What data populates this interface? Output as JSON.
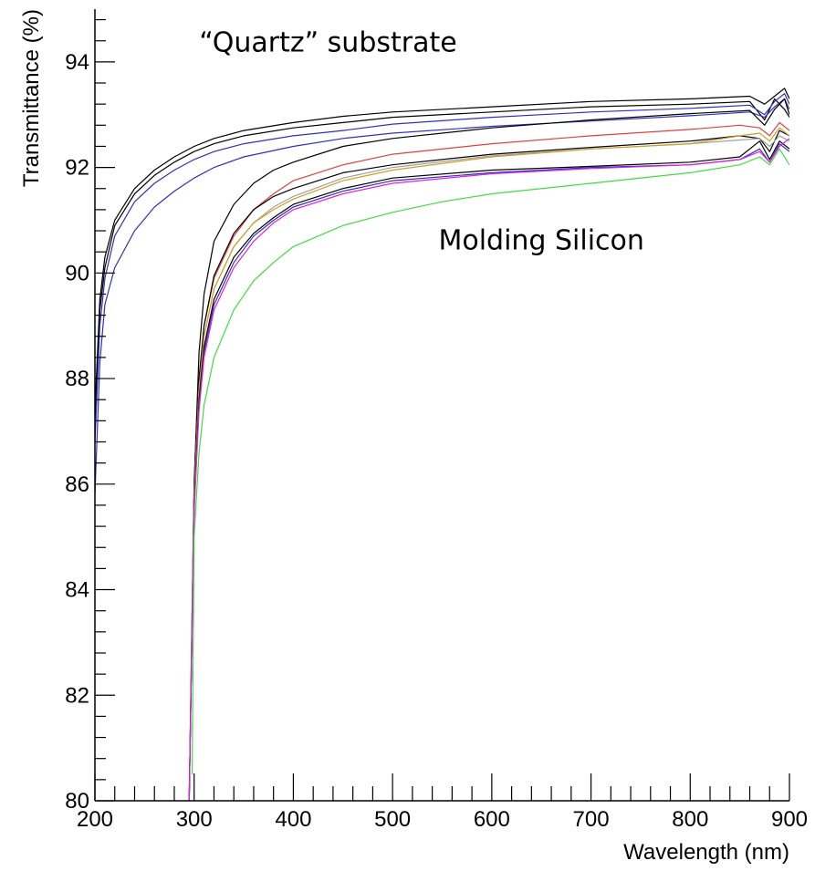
{
  "chart_data": {
    "type": "line",
    "title": "",
    "xlabel": "Wavelength (nm)",
    "ylabel": "Transmittance (%)",
    "xlim": [
      200,
      900
    ],
    "ylim": [
      80,
      95
    ],
    "x_ticks": [
      200,
      300,
      400,
      500,
      600,
      700,
      800,
      900
    ],
    "y_ticks": [
      80,
      82,
      84,
      86,
      88,
      90,
      92,
      94
    ],
    "grid": false,
    "legend": "none",
    "annotations": [
      {
        "text": "“Quartz” substrate",
        "x": 435,
        "y": 94.2
      },
      {
        "text": "Molding Silicon",
        "x": 650,
        "y": 90.45
      }
    ],
    "series": [
      {
        "color": "#000000",
        "group": "quartz",
        "points": [
          [
            200,
            87.4
          ],
          [
            205,
            89.5
          ],
          [
            210,
            90.3
          ],
          [
            220,
            91.0
          ],
          [
            240,
            91.6
          ],
          [
            260,
            91.95
          ],
          [
            280,
            92.2
          ],
          [
            300,
            92.4
          ],
          [
            320,
            92.55
          ],
          [
            350,
            92.7
          ],
          [
            400,
            92.85
          ],
          [
            450,
            92.97
          ],
          [
            500,
            93.05
          ],
          [
            600,
            93.15
          ],
          [
            700,
            93.25
          ],
          [
            800,
            93.3
          ],
          [
            860,
            93.35
          ],
          [
            875,
            93.2
          ],
          [
            885,
            93.35
          ],
          [
            895,
            93.5
          ],
          [
            900,
            93.3
          ]
        ]
      },
      {
        "color": "#000000",
        "group": "quartz",
        "points": [
          [
            200,
            87.0
          ],
          [
            205,
            89.3
          ],
          [
            210,
            90.1
          ],
          [
            220,
            90.9
          ],
          [
            240,
            91.5
          ],
          [
            260,
            91.85
          ],
          [
            280,
            92.1
          ],
          [
            300,
            92.3
          ],
          [
            320,
            92.45
          ],
          [
            350,
            92.6
          ],
          [
            400,
            92.75
          ],
          [
            450,
            92.85
          ],
          [
            500,
            92.95
          ],
          [
            600,
            93.05
          ],
          [
            700,
            93.15
          ],
          [
            800,
            93.2
          ],
          [
            860,
            93.25
          ],
          [
            875,
            92.9
          ],
          [
            885,
            93.3
          ],
          [
            895,
            93.1
          ],
          [
            900,
            92.95
          ]
        ]
      },
      {
        "color": "#3030c0",
        "group": "quartz",
        "points": [
          [
            200,
            86.8
          ],
          [
            205,
            89.0
          ],
          [
            210,
            89.9
          ],
          [
            220,
            90.7
          ],
          [
            240,
            91.35
          ],
          [
            260,
            91.7
          ],
          [
            280,
            91.95
          ],
          [
            300,
            92.15
          ],
          [
            320,
            92.3
          ],
          [
            350,
            92.45
          ],
          [
            400,
            92.6
          ],
          [
            450,
            92.7
          ],
          [
            500,
            92.82
          ],
          [
            600,
            92.95
          ],
          [
            700,
            93.05
          ],
          [
            800,
            93.12
          ],
          [
            860,
            93.18
          ],
          [
            875,
            93.0
          ],
          [
            885,
            93.25
          ],
          [
            895,
            93.4
          ],
          [
            900,
            93.2
          ]
        ]
      },
      {
        "color": "#3030c0",
        "group": "quartz",
        "points": [
          [
            200,
            85.8
          ],
          [
            205,
            88.3
          ],
          [
            210,
            89.4
          ],
          [
            220,
            90.1
          ],
          [
            240,
            90.8
          ],
          [
            260,
            91.25
          ],
          [
            280,
            91.55
          ],
          [
            300,
            91.8
          ],
          [
            320,
            92.0
          ],
          [
            350,
            92.2
          ],
          [
            400,
            92.4
          ],
          [
            450,
            92.55
          ],
          [
            500,
            92.65
          ],
          [
            600,
            92.78
          ],
          [
            700,
            92.88
          ],
          [
            800,
            92.98
          ],
          [
            860,
            93.05
          ],
          [
            875,
            92.95
          ],
          [
            885,
            93.15
          ],
          [
            895,
            93.3
          ],
          [
            900,
            93.1
          ]
        ]
      },
      {
        "color": "#000000",
        "group": "quartz",
        "points": [
          [
            300,
            86.0
          ],
          [
            305,
            88.5
          ],
          [
            310,
            89.6
          ],
          [
            320,
            90.6
          ],
          [
            340,
            91.3
          ],
          [
            360,
            91.7
          ],
          [
            380,
            91.95
          ],
          [
            400,
            92.1
          ],
          [
            450,
            92.4
          ],
          [
            500,
            92.55
          ],
          [
            600,
            92.75
          ],
          [
            700,
            92.9
          ],
          [
            800,
            93.02
          ],
          [
            860,
            93.08
          ],
          [
            875,
            92.8
          ],
          [
            885,
            93.1
          ],
          [
            895,
            93.3
          ],
          [
            900,
            93.0
          ]
        ]
      },
      {
        "color": "#e04040",
        "group": "silicon",
        "points": [
          [
            295,
            80.0
          ],
          [
            300,
            86.0
          ],
          [
            305,
            88.0
          ],
          [
            310,
            89.0
          ],
          [
            320,
            89.9
          ],
          [
            340,
            90.7
          ],
          [
            360,
            91.2
          ],
          [
            380,
            91.5
          ],
          [
            400,
            91.75
          ],
          [
            450,
            92.05
          ],
          [
            500,
            92.25
          ],
          [
            600,
            92.45
          ],
          [
            700,
            92.6
          ],
          [
            800,
            92.72
          ],
          [
            850,
            92.8
          ],
          [
            870,
            92.75
          ],
          [
            880,
            92.6
          ],
          [
            890,
            92.85
          ],
          [
            900,
            92.7
          ]
        ]
      },
      {
        "color": "#000000",
        "group": "silicon",
        "points": [
          [
            295,
            80.0
          ],
          [
            300,
            86.0
          ],
          [
            305,
            88.0
          ],
          [
            310,
            89.0
          ],
          [
            320,
            89.95
          ],
          [
            340,
            90.75
          ],
          [
            360,
            91.2
          ],
          [
            380,
            91.45
          ],
          [
            400,
            91.6
          ],
          [
            450,
            91.9
          ],
          [
            500,
            92.05
          ],
          [
            600,
            92.25
          ],
          [
            700,
            92.38
          ],
          [
            800,
            92.5
          ],
          [
            850,
            92.6
          ],
          [
            870,
            92.55
          ],
          [
            880,
            92.3
          ],
          [
            890,
            92.7
          ],
          [
            900,
            92.6
          ]
        ]
      },
      {
        "color": "#a0a0a0",
        "group": "silicon",
        "points": [
          [
            295,
            80.0
          ],
          [
            300,
            85.8
          ],
          [
            305,
            87.8
          ],
          [
            310,
            88.8
          ],
          [
            320,
            89.7
          ],
          [
            340,
            90.5
          ],
          [
            360,
            90.95
          ],
          [
            380,
            91.25
          ],
          [
            400,
            91.45
          ],
          [
            450,
            91.8
          ],
          [
            500,
            92.0
          ],
          [
            600,
            92.22
          ],
          [
            700,
            92.35
          ],
          [
            800,
            92.45
          ],
          [
            850,
            92.52
          ],
          [
            870,
            92.55
          ],
          [
            880,
            92.4
          ],
          [
            890,
            92.6
          ],
          [
            900,
            92.5
          ]
        ]
      },
      {
        "color": "#d0a020",
        "group": "silicon",
        "points": [
          [
            295,
            80.0
          ],
          [
            300,
            85.8
          ],
          [
            305,
            87.8
          ],
          [
            310,
            88.8
          ],
          [
            320,
            89.7
          ],
          [
            340,
            90.5
          ],
          [
            360,
            90.95
          ],
          [
            380,
            91.2
          ],
          [
            400,
            91.4
          ],
          [
            450,
            91.75
          ],
          [
            500,
            91.95
          ],
          [
            600,
            92.2
          ],
          [
            700,
            92.35
          ],
          [
            800,
            92.45
          ],
          [
            850,
            92.6
          ],
          [
            870,
            92.65
          ],
          [
            880,
            92.5
          ],
          [
            890,
            92.75
          ],
          [
            900,
            92.6
          ]
        ]
      },
      {
        "color": "#000000",
        "group": "silicon",
        "points": [
          [
            295,
            80.0
          ],
          [
            300,
            85.6
          ],
          [
            305,
            87.6
          ],
          [
            310,
            88.6
          ],
          [
            320,
            89.5
          ],
          [
            340,
            90.3
          ],
          [
            360,
            90.75
          ],
          [
            380,
            91.05
          ],
          [
            400,
            91.3
          ],
          [
            450,
            91.6
          ],
          [
            500,
            91.8
          ],
          [
            600,
            91.95
          ],
          [
            700,
            92.02
          ],
          [
            800,
            92.1
          ],
          [
            850,
            92.2
          ],
          [
            870,
            92.5
          ],
          [
            880,
            92.15
          ],
          [
            890,
            92.5
          ],
          [
            900,
            92.35
          ]
        ]
      },
      {
        "color": "#3030c0",
        "group": "silicon",
        "points": [
          [
            295,
            80.0
          ],
          [
            300,
            85.5
          ],
          [
            305,
            87.5
          ],
          [
            310,
            88.5
          ],
          [
            320,
            89.4
          ],
          [
            340,
            90.2
          ],
          [
            360,
            90.7
          ],
          [
            380,
            91.0
          ],
          [
            400,
            91.25
          ],
          [
            450,
            91.55
          ],
          [
            500,
            91.75
          ],
          [
            600,
            91.9
          ],
          [
            700,
            92.0
          ],
          [
            800,
            92.05
          ],
          [
            850,
            92.15
          ],
          [
            870,
            92.35
          ],
          [
            880,
            92.1
          ],
          [
            890,
            92.45
          ],
          [
            900,
            92.3
          ]
        ]
      },
      {
        "color": "#e020e0",
        "group": "silicon",
        "points": [
          [
            295,
            80.0
          ],
          [
            300,
            85.5
          ],
          [
            305,
            87.4
          ],
          [
            310,
            88.4
          ],
          [
            320,
            89.3
          ],
          [
            340,
            90.1
          ],
          [
            360,
            90.6
          ],
          [
            380,
            90.95
          ],
          [
            400,
            91.2
          ],
          [
            450,
            91.5
          ],
          [
            500,
            91.7
          ],
          [
            600,
            91.88
          ],
          [
            700,
            91.98
          ],
          [
            800,
            92.05
          ],
          [
            850,
            92.15
          ],
          [
            870,
            92.3
          ],
          [
            880,
            92.1
          ],
          [
            890,
            92.4
          ],
          [
            900,
            92.55
          ]
        ]
      },
      {
        "color": "#40dd40",
        "group": "silicon",
        "points": [
          [
            298,
            80.5
          ],
          [
            300,
            85.0
          ],
          [
            305,
            86.6
          ],
          [
            310,
            87.5
          ],
          [
            320,
            88.4
          ],
          [
            340,
            89.3
          ],
          [
            360,
            89.85
          ],
          [
            380,
            90.2
          ],
          [
            400,
            90.5
          ],
          [
            450,
            90.9
          ],
          [
            500,
            91.15
          ],
          [
            550,
            91.35
          ],
          [
            600,
            91.5
          ],
          [
            700,
            91.7
          ],
          [
            800,
            91.9
          ],
          [
            850,
            92.05
          ],
          [
            870,
            92.2
          ],
          [
            880,
            92.05
          ],
          [
            890,
            92.35
          ],
          [
            900,
            92.05
          ]
        ]
      }
    ]
  }
}
